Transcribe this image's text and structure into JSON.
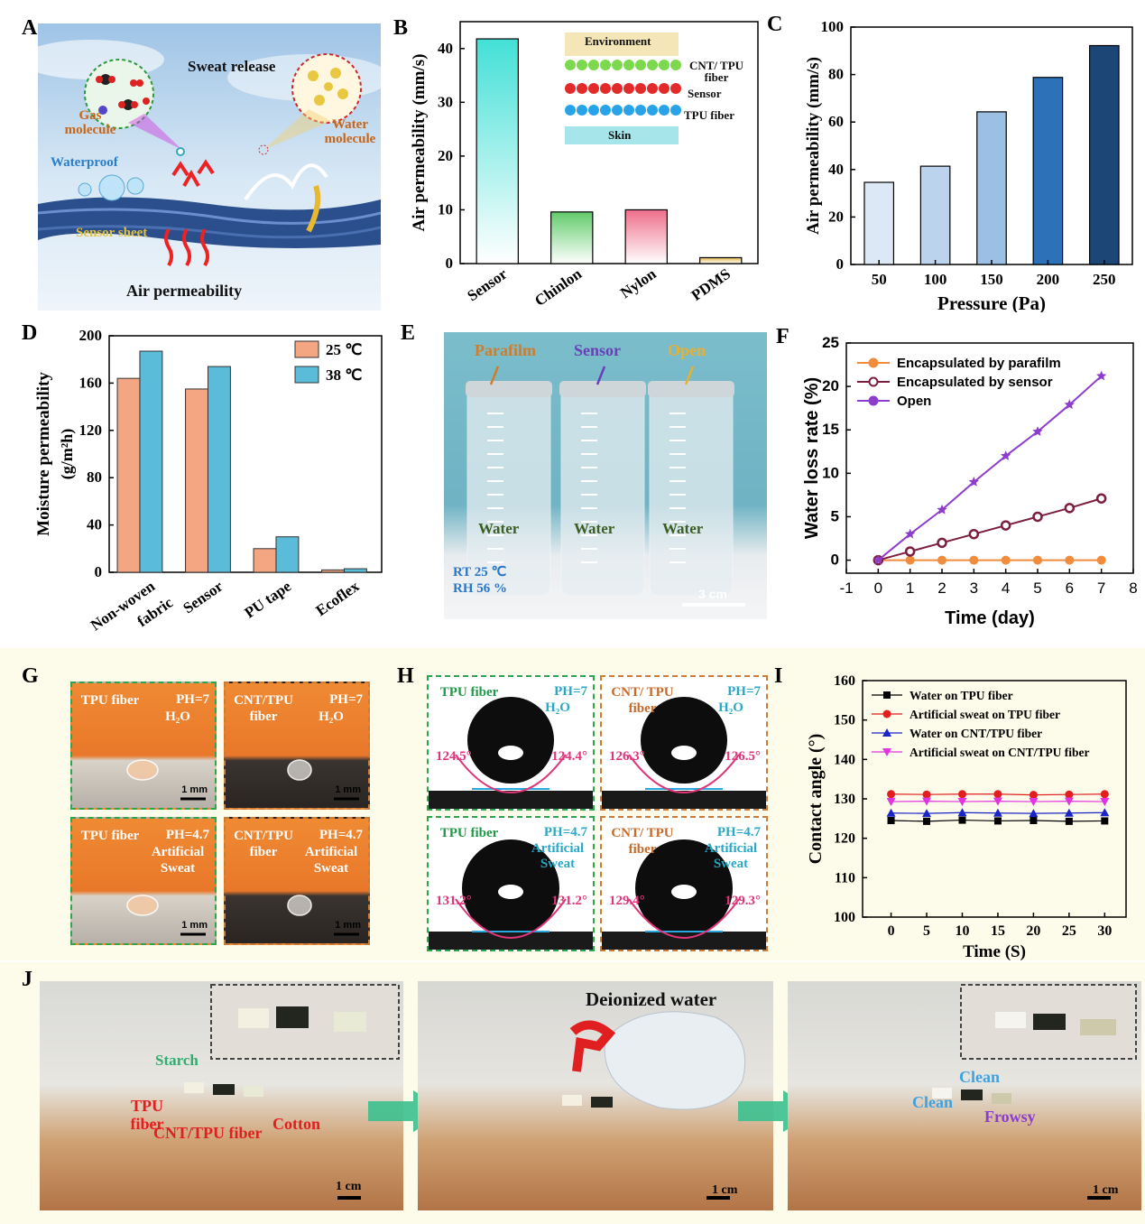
{
  "panel_labels": [
    "A",
    "B",
    "C",
    "D",
    "E",
    "F",
    "G",
    "H",
    "I",
    "J"
  ],
  "panelA": {
    "sweat_release": "Sweat release",
    "gas_molecule": "Gas molecule",
    "water_molecule": "Water molecule",
    "waterproof": "Waterproof",
    "sensor_sheet": "Sensor sheet",
    "air_permeability": "Air permeability"
  },
  "panelB_inset": {
    "environment": "Environment",
    "cnt_tpu": "CNT/ TPU fiber",
    "sensor": "Sensor",
    "tpu_fiber": "TPU fiber",
    "skin": "Skin"
  },
  "panelE": {
    "labels": [
      "Parafilm",
      "Sensor",
      "Open"
    ],
    "water": "Water",
    "rt": "RT 25 ℃",
    "rh": "RH 56 %",
    "scale": "3 cm"
  },
  "panelG": {
    "cells": [
      {
        "fiber": "TPU fiber",
        "cond": "PH=7",
        "liq": "H2O"
      },
      {
        "fiber": "CNT/TPU fiber",
        "cond": "PH=7",
        "liq": "H2O"
      },
      {
        "fiber": "TPU fiber",
        "cond": "PH=4.7",
        "liq": "Artificial Sweat"
      },
      {
        "fiber": "CNT/TPU fiber",
        "cond": "PH=4.7",
        "liq": "Artificial Sweat"
      }
    ],
    "scale": "1 mm"
  },
  "panelH": {
    "cells": [
      {
        "fiber": "TPU fiber",
        "cond": "PH=7",
        "liq": "H2O",
        "left": "124.5°",
        "right": "124.4°"
      },
      {
        "fiber": "CNT/ TPU fiber",
        "cond": "PH=7",
        "liq": "H2O",
        "left": "126.3°",
        "right": "126.5°"
      },
      {
        "fiber": "TPU fiber",
        "cond": "PH=4.7",
        "liq": "Artificial Sweat",
        "left": "131.2°",
        "right": "131.2°"
      },
      {
        "fiber": "CNT/ TPU fiber",
        "cond": "PH=4.7",
        "liq": "Artificial Sweat",
        "left": "129.4°",
        "right": "129.3°"
      }
    ]
  },
  "panelJ": {
    "starch": "Starch",
    "tpu_fiber": "TPU fiber",
    "cnt_tpu_fiber": "CNT/TPU fiber",
    "cotton": "Cotton",
    "deionized_water": "Deionized water",
    "clean": "Clean",
    "frowsy": "Frowsy",
    "scale": "1 cm"
  },
  "colors": {
    "band": "#fdfbe9",
    "sky": "#b9d6ee",
    "orange_bar": "#f4a582",
    "blue_bar": "#5bbcd9",
    "purple": "#8e3ccb",
    "maroon": "#7b1f3d",
    "orange_line": "#f08c3c",
    "skin": "#c58a5a"
  },
  "chart_data": [
    {
      "id": "B",
      "type": "bar",
      "categories": [
        "Sensor",
        "Chinlon",
        "Nylon",
        "PDMS"
      ],
      "values": [
        41.8,
        9.6,
        10.0,
        1.1
      ],
      "ylabel": "Air permeability (mm/s)",
      "ylim": [
        0,
        45
      ],
      "yticks": [
        0,
        10,
        20,
        30,
        40
      ],
      "colors": [
        "#42e0d6",
        "#62cc6b",
        "#ee6e8a",
        "#e6b84c"
      ]
    },
    {
      "id": "C",
      "type": "bar",
      "categories": [
        "50",
        "100",
        "150",
        "200",
        "250"
      ],
      "values": [
        34.6,
        41.4,
        64.3,
        78.8,
        92.2
      ],
      "xlabel": "Pressure (Pa)",
      "ylabel": "Air permeability (mm/s)",
      "ylim": [
        0,
        100
      ],
      "yticks": [
        0,
        20,
        40,
        60,
        80,
        100
      ],
      "colors": [
        "#dde8f6",
        "#bcd3ee",
        "#9cc0e3",
        "#2d72b8",
        "#1b4675"
      ]
    },
    {
      "id": "D",
      "type": "bar",
      "categories": [
        "Non-woven fabric",
        "Sensor",
        "PU tape",
        "Ecoflex"
      ],
      "series": [
        {
          "name": "25 ℃",
          "values": [
            164,
            155,
            20,
            2
          ]
        },
        {
          "name": "38 ℃",
          "values": [
            187,
            174,
            30,
            3
          ]
        }
      ],
      "ylabel": "Moisture permeability (g/m²h)",
      "ylim": [
        0,
        200
      ],
      "yticks": [
        0,
        40,
        80,
        120,
        160,
        200
      ],
      "legend": "top-right"
    },
    {
      "id": "F",
      "type": "line",
      "x": [
        0,
        1,
        2,
        3,
        4,
        5,
        6,
        7
      ],
      "series": [
        {
          "name": "Encapsulated by parafilm",
          "values": [
            0,
            0,
            0,
            0,
            0,
            0,
            0,
            0
          ]
        },
        {
          "name": "Encapsulated by sensor",
          "values": [
            0,
            1,
            2,
            3,
            4,
            5,
            6,
            7.1
          ]
        },
        {
          "name": "Open",
          "values": [
            0,
            3,
            5.8,
            9,
            12,
            14.8,
            17.9,
            21.2
          ]
        }
      ],
      "xlabel": "Time (day)",
      "ylabel": "Water loss rate (%)",
      "xlim": [
        -1,
        8
      ],
      "ylim": [
        -1.5,
        25
      ],
      "xticks": [
        -1,
        0,
        1,
        2,
        3,
        4,
        5,
        6,
        7,
        8
      ],
      "yticks": [
        0,
        5,
        10,
        15,
        20,
        25
      ],
      "legend": "top-left"
    },
    {
      "id": "I",
      "type": "line",
      "x": [
        0,
        5,
        10,
        15,
        20,
        25,
        30
      ],
      "series": [
        {
          "name": "Water on TPU fiber",
          "values": [
            124.5,
            124.3,
            124.6,
            124.4,
            124.5,
            124.3,
            124.4
          ]
        },
        {
          "name": "Artificial sweat on TPU fiber",
          "values": [
            131.2,
            131.1,
            131.2,
            131.2,
            131.0,
            131.1,
            131.2
          ]
        },
        {
          "name": "Water on CNT/TPU fiber",
          "values": [
            126.4,
            126.3,
            126.5,
            126.4,
            126.3,
            126.4,
            126.5
          ]
        },
        {
          "name": "Artificial sweat on CNT/TPU fiber",
          "values": [
            129.3,
            129.4,
            129.3,
            129.4,
            129.3,
            129.4,
            129.3
          ]
        }
      ],
      "xlabel": "Time (S)",
      "ylabel": "Contact angle (°)",
      "xlim": [
        -4,
        33
      ],
      "ylim": [
        100,
        160
      ],
      "xticks": [
        0,
        5,
        10,
        15,
        20,
        25,
        30
      ],
      "yticks": [
        100,
        110,
        120,
        130,
        140,
        150,
        160
      ],
      "legend": "top-left"
    }
  ]
}
